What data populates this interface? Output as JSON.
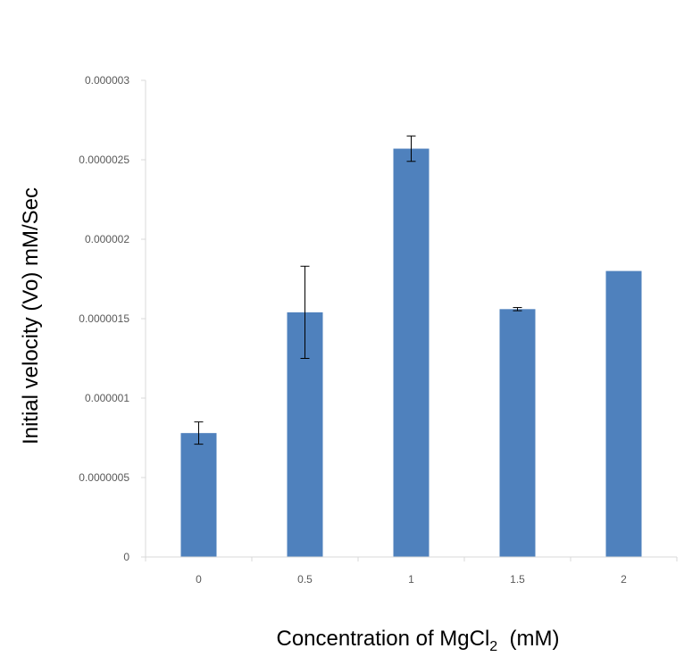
{
  "chart_data": {
    "type": "bar",
    "categories": [
      "0",
      "0.5",
      "1",
      "1.5",
      "2"
    ],
    "values": [
      7.8e-07,
      1.54e-06,
      2.57e-06,
      1.56e-06,
      1.8e-06
    ],
    "error": [
      7e-08,
      2.9e-07,
      8e-08,
      1e-08,
      0.0
    ],
    "y_ticks": [
      "0",
      "0.0000005",
      "0.000001",
      "0.0000015",
      "0.000002",
      "0.0000025",
      "0.000003"
    ],
    "ylim": [
      0,
      3e-06
    ],
    "ylabel": "Initial velocity (Vo) mM/Sec",
    "xlabel": {
      "prefix": "Concentration of MgCl",
      "subscript": "2",
      "suffix": "  (mM)"
    },
    "grid": false,
    "legend": "none",
    "bar_color": "#4f81bd",
    "axis_color": "#d9d9d9"
  }
}
